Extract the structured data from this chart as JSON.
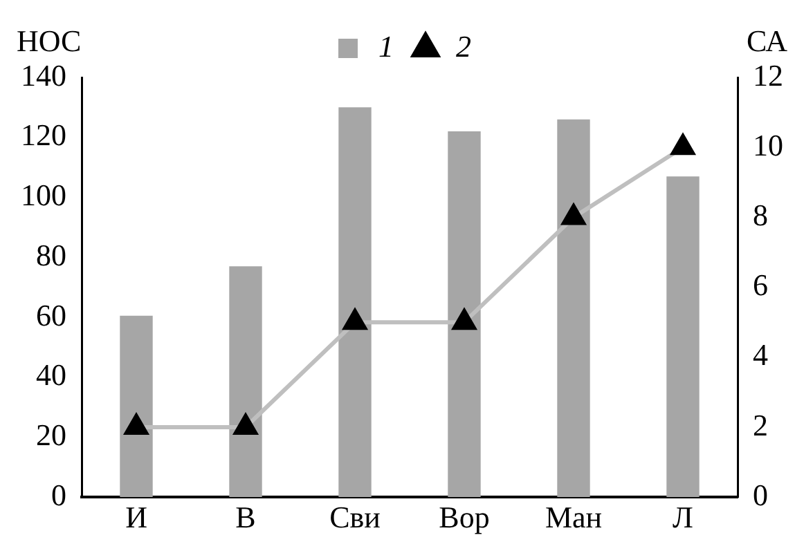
{
  "chart_data": {
    "type": "bar",
    "ylabel": "НОС",
    "y2label": "СА",
    "categories": [
      "И",
      "В",
      "Сви",
      "Вор",
      "Ман",
      "Л"
    ],
    "series": [
      {
        "name": "1",
        "color": "#a6a6a6",
        "values": [
          60.5,
          77,
          130,
          122,
          126,
          107
        ]
      },
      {
        "name": "2",
        "type": "line",
        "axis": "y2",
        "color": "#bfbfbf",
        "marker": "triangle",
        "values": [
          2,
          2,
          5,
          5,
          8,
          10
        ]
      }
    ],
    "ylim": [
      0,
      140
    ],
    "yticks": [
      0,
      20,
      40,
      60,
      80,
      100,
      120,
      140
    ],
    "y2lim": [
      0,
      12
    ],
    "y2ticks": [
      0,
      2,
      4,
      6,
      8,
      10,
      12
    ],
    "grid": false,
    "legend": "top right"
  }
}
